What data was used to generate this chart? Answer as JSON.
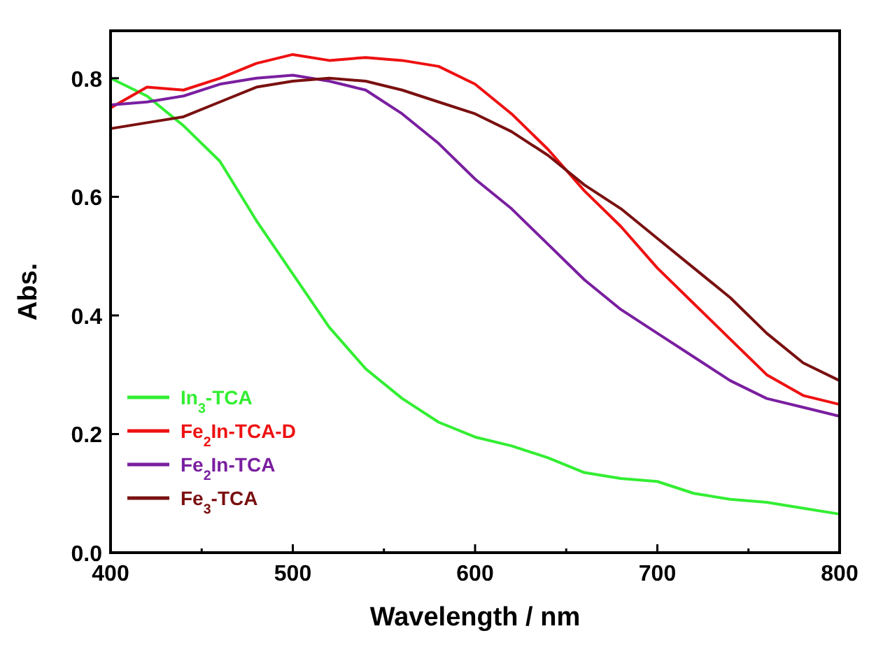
{
  "chart_data": {
    "type": "line",
    "xlabel": "Wavelength / nm",
    "ylabel": "Abs.",
    "xlim": [
      400,
      800
    ],
    "ylim": [
      0,
      0.88
    ],
    "xticks": [
      400,
      500,
      600,
      700,
      800
    ],
    "yticks": [
      {
        "value": 0,
        "label": "0.0"
      },
      {
        "value": 0.2,
        "label": "0.2"
      },
      {
        "value": 0.4,
        "label": "0.4"
      },
      {
        "value": 0.6,
        "label": "0.6"
      },
      {
        "value": 0.8,
        "label": "0.8"
      }
    ],
    "legend": "bottom left",
    "grid": false,
    "line_style": "solid",
    "x": [
      400,
      420,
      440,
      460,
      480,
      500,
      520,
      540,
      560,
      580,
      600,
      620,
      640,
      660,
      680,
      700,
      720,
      740,
      760,
      780,
      800
    ],
    "series": [
      {
        "name": "In$_{3}$-TCA",
        "color": "#33ee33",
        "values": [
          0.8,
          0.77,
          0.72,
          0.66,
          0.56,
          0.47,
          0.38,
          0.31,
          0.26,
          0.22,
          0.195,
          0.18,
          0.16,
          0.135,
          0.125,
          0.12,
          0.1,
          0.09,
          0.085,
          0.075,
          0.065
        ]
      },
      {
        "name": "Fe$_{2}$In-TCA-D",
        "color": "#ee1111",
        "values": [
          0.75,
          0.785,
          0.78,
          0.8,
          0.825,
          0.84,
          0.83,
          0.835,
          0.83,
          0.82,
          0.79,
          0.74,
          0.68,
          0.61,
          0.55,
          0.48,
          0.42,
          0.36,
          0.3,
          0.265,
          0.25
        ]
      },
      {
        "name": "Fe$_{2}$In-TCA",
        "color": "#7a1fa0",
        "values": [
          0.755,
          0.76,
          0.77,
          0.79,
          0.8,
          0.805,
          0.795,
          0.78,
          0.74,
          0.69,
          0.63,
          0.58,
          0.52,
          0.46,
          0.41,
          0.37,
          0.33,
          0.29,
          0.26,
          0.245,
          0.23
        ]
      },
      {
        "name": "Fe$_{3}$-TCA",
        "color": "#7a1010",
        "values": [
          0.715,
          0.725,
          0.735,
          0.76,
          0.785,
          0.795,
          0.8,
          0.795,
          0.78,
          0.76,
          0.74,
          0.71,
          0.67,
          0.62,
          0.58,
          0.53,
          0.48,
          0.43,
          0.37,
          0.32,
          0.29
        ]
      }
    ]
  }
}
